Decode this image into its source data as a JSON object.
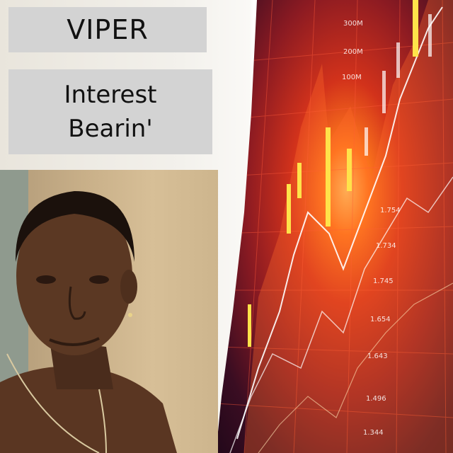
{
  "cover": {
    "artist": "VIPER",
    "album_line1": "Interest",
    "album_line2": "Bearin'"
  },
  "chart_ticks": [
    "300M",
    "200M",
    "100M",
    "1.754",
    "1.734",
    "1.745",
    "1.654",
    "1.643",
    "1.496",
    "1.344"
  ],
  "colors": {
    "title_box": "#d3d3d3",
    "chart_red": "#d2321b",
    "chart_glow": "#ffcf6a"
  }
}
